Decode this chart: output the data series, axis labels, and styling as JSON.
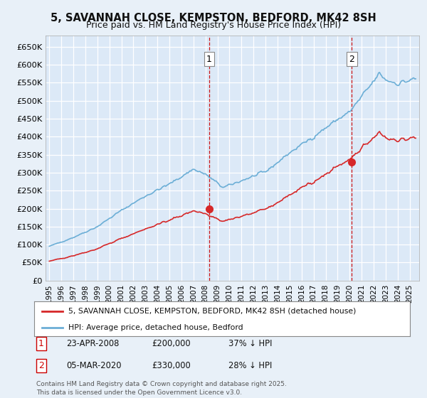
{
  "title": "5, SAVANNAH CLOSE, KEMPSTON, BEDFORD, MK42 8SH",
  "subtitle": "Price paid vs. HM Land Registry's House Price Index (HPI)",
  "ylim": [
    0,
    680000
  ],
  "yticks": [
    0,
    50000,
    100000,
    150000,
    200000,
    250000,
    300000,
    350000,
    400000,
    450000,
    500000,
    550000,
    600000,
    650000
  ],
  "ytick_labels": [
    "£0",
    "£50K",
    "£100K",
    "£150K",
    "£200K",
    "£250K",
    "£300K",
    "£350K",
    "£400K",
    "£450K",
    "£500K",
    "£550K",
    "£600K",
    "£650K"
  ],
  "xlim_start": 1994.7,
  "xlim_end": 2025.8,
  "background_color": "#e8f0f8",
  "plot_bg_color": "#dce9f7",
  "hpi_color": "#6baed6",
  "price_color": "#d62728",
  "grid_color": "#ffffff",
  "purchase1_x": 2008.31,
  "purchase1_y": 200000,
  "purchase1_label": "1",
  "purchase2_x": 2020.17,
  "purchase2_y": 330000,
  "purchase2_label": "2",
  "hpi_milestones_x": [
    1995,
    1997,
    1999,
    2001,
    2003,
    2005,
    2007,
    2008,
    2009.5,
    2011,
    2013,
    2015,
    2017,
    2019,
    2020,
    2021,
    2022.5,
    2023,
    2024,
    2025.5
  ],
  "hpi_milestones_y": [
    95000,
    120000,
    150000,
    195000,
    235000,
    268000,
    310000,
    295000,
    258000,
    278000,
    302000,
    355000,
    400000,
    448000,
    468000,
    510000,
    575000,
    558000,
    548000,
    560000
  ],
  "price_ratio_x": [
    1995,
    2000,
    2005,
    2008.31,
    2014,
    2020.17,
    2022,
    2025.5
  ],
  "price_ratio_y": [
    0.565,
    0.595,
    0.625,
    0.63,
    0.66,
    0.72,
    0.715,
    0.71
  ],
  "legend_label_price": "5, SAVANNAH CLOSE, KEMPSTON, BEDFORD, MK42 8SH (detached house)",
  "legend_label_hpi": "HPI: Average price, detached house, Bedford",
  "note1_label": "1",
  "note1_date": "23-APR-2008",
  "note1_price": "£200,000",
  "note1_pct": "37% ↓ HPI",
  "note2_label": "2",
  "note2_date": "05-MAR-2020",
  "note2_price": "£330,000",
  "note2_pct": "28% ↓ HPI",
  "footer": "Contains HM Land Registry data © Crown copyright and database right 2025.\nThis data is licensed under the Open Government Licence v3.0.",
  "vline_color": "#cc0000"
}
